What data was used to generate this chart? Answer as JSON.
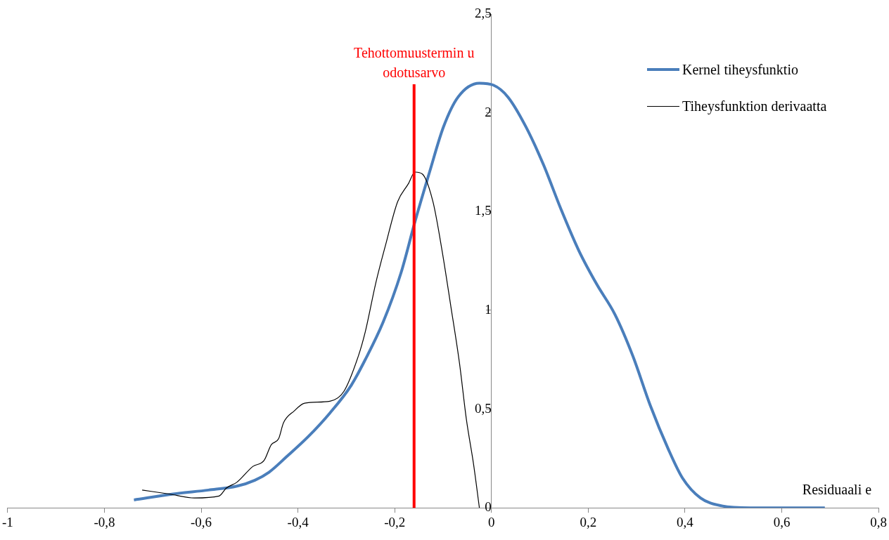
{
  "chart_data": {
    "type": "line",
    "xlabel": "Residuaali e",
    "xlim": [
      -1,
      0.8
    ],
    "xticks": [
      -1,
      {
        "value": -0.8,
        "label": "-0,8"
      },
      {
        "value": -0.6,
        "label": "-0,6"
      },
      {
        "value": -0.4,
        "label": "-0,4"
      },
      {
        "value": -0.2,
        "label": "-0,2"
      },
      0,
      {
        "value": 0.2,
        "label": "0,2"
      },
      {
        "value": 0.4,
        "label": "0,4"
      },
      {
        "value": 0.6,
        "label": "0,6"
      },
      {
        "value": 0.8,
        "label": "0,8"
      }
    ],
    "ylim": [
      0,
      2.5
    ],
    "yticks": [
      0,
      {
        "value": 0.5,
        "label": "0,5"
      },
      1,
      {
        "value": 1.5,
        "label": "1,5"
      },
      2,
      {
        "value": 2.5,
        "label": "2,5"
      }
    ],
    "grid": false,
    "legend": "top right",
    "marker": "none",
    "series": [
      {
        "name": "Kernel tiheysfunktio",
        "color": "#4a7ebb",
        "x": [
          -0.739,
          -0.658,
          -0.585,
          -0.526,
          -0.489,
          -0.46,
          -0.423,
          -0.379,
          -0.334,
          -0.29,
          -0.261,
          -0.224,
          -0.187,
          -0.158,
          -0.128,
          -0.099,
          -0.069,
          -0.025,
          0.004,
          0.034,
          0.071,
          0.107,
          0.144,
          0.181,
          0.218,
          0.255,
          0.292,
          0.328,
          0.365,
          0.395,
          0.432,
          0.476,
          0.535,
          0.689
        ],
        "values": [
          0.04,
          0.07,
          0.09,
          0.11,
          0.14,
          0.18,
          0.26,
          0.36,
          0.48,
          0.62,
          0.75,
          0.94,
          1.19,
          1.45,
          1.7,
          1.93,
          2.08,
          2.15,
          2.14,
          2.08,
          1.93,
          1.74,
          1.51,
          1.3,
          1.13,
          0.98,
          0.77,
          0.52,
          0.3,
          0.15,
          0.05,
          0.01,
          0,
          0
        ]
      },
      {
        "name": "Tiheysfunktion derivaatta",
        "color": "#000000",
        "x": [
          -0.722,
          -0.666,
          -0.614,
          -0.563,
          -0.548,
          -0.526,
          -0.493,
          -0.47,
          -0.455,
          -0.44,
          -0.43,
          -0.408,
          -0.386,
          -0.334,
          -0.305,
          -0.275,
          -0.261,
          -0.239,
          -0.219,
          -0.194,
          -0.172,
          -0.158,
          -0.143,
          -0.121,
          -0.102,
          -0.084,
          -0.066,
          -0.052,
          -0.037,
          -0.025
        ],
        "values": [
          0.09,
          0.07,
          0.05,
          0.06,
          0.1,
          0.13,
          0.21,
          0.24,
          0.32,
          0.35,
          0.43,
          0.49,
          0.53,
          0.54,
          0.59,
          0.77,
          0.89,
          1.14,
          1.33,
          1.55,
          1.64,
          1.7,
          1.69,
          1.55,
          1.3,
          1.02,
          0.73,
          0.45,
          0.22,
          0
        ]
      }
    ],
    "ref_lines": [
      {
        "axis": "x",
        "value": -0.16,
        "label": "Tehottomuustermin u odotusarvo",
        "color": "#ff0000"
      }
    ]
  }
}
